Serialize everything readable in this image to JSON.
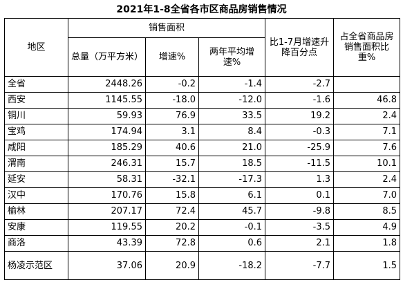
{
  "title": "2021年1-8全省各市区商品房销售情况",
  "headers": {
    "region": "地区",
    "sales_area": "销售面积",
    "total": "总量（万平方米）",
    "growth": "增速%",
    "two_year_avg": "两年平均增速%",
    "change_vs_jan_jul": "比1-7月增速升降百分点",
    "share_of_province": "占全省商品房销售面积比重%"
  },
  "rows": [
    {
      "region": "全省",
      "total": "2448.26",
      "growth": "-0.2",
      "two_year_avg": "-1.4",
      "change": "-2.7",
      "share": ""
    },
    {
      "region": "西安",
      "total": "1145.55",
      "growth": "-18.0",
      "two_year_avg": "-12.0",
      "change": "-1.6",
      "share": "46.8"
    },
    {
      "region": "铜川",
      "total": "59.93",
      "growth": "76.9",
      "two_year_avg": "33.5",
      "change": "19.2",
      "share": "2.4"
    },
    {
      "region": "宝鸡",
      "total": "174.94",
      "growth": "3.1",
      "two_year_avg": "8.4",
      "change": "-0.3",
      "share": "7.1"
    },
    {
      "region": "咸阳",
      "total": "185.29",
      "growth": "40.6",
      "two_year_avg": "21.0",
      "change": "-25.9",
      "share": "7.6"
    },
    {
      "region": "渭南",
      "total": "246.31",
      "growth": "15.7",
      "two_year_avg": "18.5",
      "change": "-11.5",
      "share": "10.1"
    },
    {
      "region": "延安",
      "total": "58.31",
      "growth": "-32.1",
      "two_year_avg": "-17.3",
      "change": "1.3",
      "share": "2.4"
    },
    {
      "region": "汉中",
      "total": "170.76",
      "growth": "15.8",
      "two_year_avg": "6.1",
      "change": "0.1",
      "share": "7.0"
    },
    {
      "region": "榆林",
      "total": "207.17",
      "growth": "72.4",
      "two_year_avg": "45.7",
      "change": "-9.8",
      "share": "8.5"
    },
    {
      "region": "安康",
      "total": "119.55",
      "growth": "20.2",
      "two_year_avg": "-0.1",
      "change": "-3.5",
      "share": "4.9"
    },
    {
      "region": "商洛",
      "total": "43.39",
      "growth": "72.8",
      "two_year_avg": "0.6",
      "change": "2.1",
      "share": "1.8"
    },
    {
      "region": "杨凌示范区",
      "total": "37.06",
      "growth": "20.9",
      "two_year_avg": "-18.2",
      "change": "-7.7",
      "share": "1.5"
    }
  ]
}
